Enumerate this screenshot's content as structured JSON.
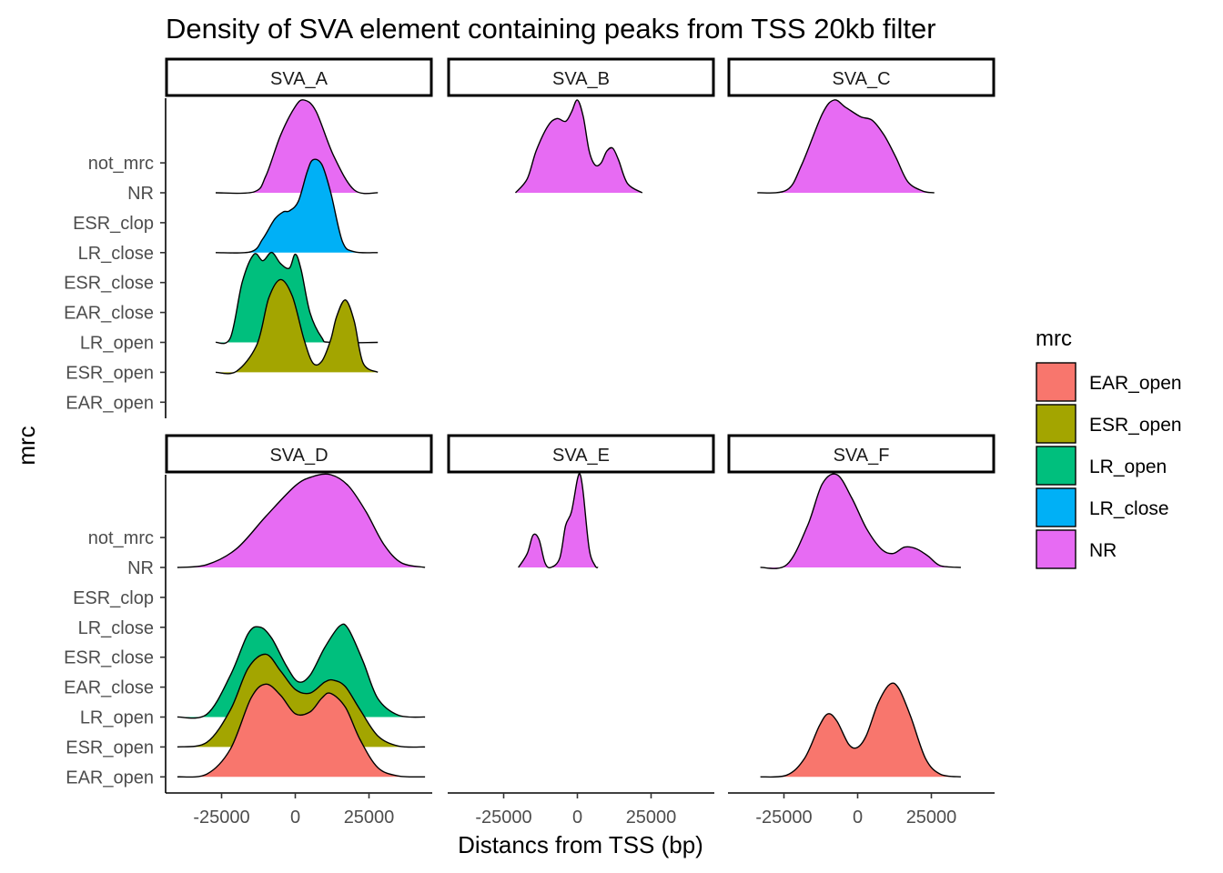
{
  "chart_data": {
    "type": "area",
    "subtype": "ridgeline-density",
    "title": "Density of SVA element containing peaks from TSS 20kb filter",
    "xlabel": "Distancs from TSS (bp)",
    "ylabel": "mrc",
    "x_ticks": [
      "-25000",
      "0",
      "25000"
    ],
    "x_tick_values": [
      -25000,
      0,
      25000
    ],
    "y_categories": [
      "EAR_open",
      "ESR_open",
      "LR_open",
      "EAR_close",
      "ESR_close",
      "LR_close",
      "ESR_clop",
      "NR",
      "not_mrc"
    ],
    "legend": {
      "title": "mrc",
      "position": "right",
      "entries": [
        {
          "label": "EAR_open",
          "color": "#F8766D"
        },
        {
          "label": "ESR_open",
          "color": "#A3A500"
        },
        {
          "label": "LR_open",
          "color": "#00BF7D"
        },
        {
          "label": "LR_close",
          "color": "#00B0F6"
        },
        {
          "label": "NR",
          "color": "#E76BF3"
        }
      ]
    },
    "facets": [
      {
        "name": "SVA_A",
        "ridges": [
          {
            "category": "NR",
            "color": "#E76BF3",
            "x": [
              -27000,
              -14000,
              -10000,
              -5000,
              0,
              3000,
              7000,
              13000,
              20000,
              28000
            ],
            "density": [
              0,
              0.01,
              0.18,
              0.62,
              0.93,
              1.0,
              0.88,
              0.4,
              0.03,
              0
            ]
          },
          {
            "category": "LR_close",
            "color": "#00B0F6",
            "x": [
              -27000,
              -15000,
              -11000,
              -7000,
              -4000,
              -2000,
              1000,
              4000,
              6000,
              9000,
              12000,
              16000,
              20000,
              28000
            ],
            "density": [
              0,
              0.01,
              0.15,
              0.36,
              0.44,
              0.45,
              0.55,
              0.87,
              1.0,
              0.95,
              0.65,
              0.12,
              0.01,
              0
            ]
          },
          {
            "category": "LR_open",
            "color": "#00BF7D",
            "x": [
              -27000,
              -22000,
              -18000,
              -14000,
              -11000,
              -8000,
              -5000,
              -2000,
              0,
              2000,
              5000,
              9000,
              12000,
              28000
            ],
            "density": [
              0,
              0.05,
              0.65,
              0.95,
              0.88,
              0.97,
              0.85,
              0.8,
              0.95,
              0.78,
              0.32,
              0.05,
              0,
              0
            ]
          },
          {
            "category": "ESR_open",
            "color": "#A3A500",
            "x": [
              -27000,
              -20000,
              -13000,
              -9000,
              -5000,
              -1000,
              3000,
              6000,
              9000,
              12000,
              14000,
              17000,
              20000,
              23000,
              28000
            ],
            "density": [
              0,
              0.01,
              0.3,
              0.8,
              1.0,
              0.82,
              0.35,
              0.1,
              0.12,
              0.35,
              0.6,
              0.78,
              0.55,
              0.1,
              0
            ]
          }
        ]
      },
      {
        "name": "SVA_B",
        "ridges": [
          {
            "category": "NR",
            "color": "#E76BF3",
            "x": [
              -21000,
              -17000,
              -14000,
              -10000,
              -7000,
              -4000,
              -2000,
              0,
              2000,
              4000,
              6000,
              8000,
              10000,
              12000,
              14000,
              17000,
              22000
            ],
            "density": [
              0,
              0.15,
              0.45,
              0.72,
              0.8,
              0.77,
              0.87,
              1.0,
              0.82,
              0.45,
              0.3,
              0.32,
              0.45,
              0.48,
              0.35,
              0.1,
              0
            ]
          }
        ]
      },
      {
        "name": "SVA_C",
        "ridges": [
          {
            "category": "NR",
            "color": "#E76BF3",
            "x": [
              -34000,
              -24000,
              -19000,
              -12000,
              -8000,
              -4000,
              1000,
              5000,
              9000,
              13000,
              17000,
              22000,
              26000
            ],
            "density": [
              0,
              0.03,
              0.3,
              0.85,
              1.0,
              0.92,
              0.82,
              0.78,
              0.62,
              0.38,
              0.12,
              0.02,
              0
            ]
          }
        ]
      },
      {
        "name": "SVA_D",
        "ridges": [
          {
            "category": "NR",
            "color": "#E76BF3",
            "x": [
              -40000,
              -30000,
              -20000,
              -10000,
              0,
              6000,
              12000,
              18000,
              24000,
              30000,
              36000,
              44000
            ],
            "density": [
              0,
              0.03,
              0.2,
              0.55,
              0.88,
              0.98,
              1.0,
              0.88,
              0.6,
              0.25,
              0.05,
              0
            ]
          },
          {
            "category": "LR_open",
            "color": "#00BF7D",
            "x": [
              -40000,
              -30000,
              -22000,
              -16000,
              -12000,
              -8000,
              -3000,
              1000,
              5000,
              10000,
              15000,
              18000,
              23000,
              28000,
              35000,
              44000
            ],
            "density": [
              0,
              0.03,
              0.45,
              0.9,
              0.97,
              0.85,
              0.55,
              0.38,
              0.45,
              0.75,
              0.98,
              0.95,
              0.6,
              0.2,
              0.02,
              0
            ]
          },
          {
            "category": "ESR_open",
            "color": "#A3A500",
            "x": [
              -40000,
              -30000,
              -22000,
              -16000,
              -10000,
              -5000,
              0,
              5000,
              10000,
              13000,
              17000,
              22000,
              28000,
              35000,
              44000
            ],
            "density": [
              0,
              0.05,
              0.4,
              0.85,
              1.0,
              0.82,
              0.62,
              0.58,
              0.7,
              0.72,
              0.65,
              0.4,
              0.12,
              0.01,
              0
            ]
          },
          {
            "category": "EAR_open",
            "color": "#F8766D",
            "x": [
              -40000,
              -30000,
              -22000,
              -15000,
              -10000,
              -5000,
              0,
              5000,
              9000,
              12000,
              17000,
              22000,
              28000,
              35000,
              44000
            ],
            "density": [
              0,
              0.03,
              0.3,
              0.85,
              1.0,
              0.88,
              0.68,
              0.7,
              0.85,
              0.9,
              0.75,
              0.4,
              0.1,
              0.01,
              0
            ]
          }
        ]
      },
      {
        "name": "SVA_E",
        "ridges": [
          {
            "category": "NR",
            "color": "#E76BF3",
            "x": [
              -20000,
              -17000,
              -15000,
              -13000,
              -11000,
              -9000,
              -6000,
              -4000,
              -2000,
              0,
              1000,
              2000,
              4000,
              6000,
              7000
            ],
            "density": [
              0,
              0.15,
              0.35,
              0.3,
              0.05,
              0,
              0.1,
              0.45,
              0.6,
              0.95,
              1.0,
              0.8,
              0.2,
              0.02,
              0
            ]
          }
        ]
      },
      {
        "name": "SVA_F",
        "ridges": [
          {
            "category": "NR",
            "color": "#E76BF3",
            "x": [
              -33000,
              -24000,
              -17000,
              -12000,
              -7000,
              -2000,
              3000,
              8000,
              12000,
              16000,
              20000,
              24000,
              28000,
              35000
            ],
            "density": [
              0,
              0.03,
              0.45,
              0.9,
              1.0,
              0.75,
              0.42,
              0.2,
              0.15,
              0.22,
              0.2,
              0.12,
              0.02,
              0
            ]
          },
          {
            "category": "EAR_open",
            "color": "#F8766D",
            "x": [
              -33000,
              -24000,
              -18000,
              -13000,
              -10000,
              -7000,
              -3000,
              0,
              3000,
              7000,
              11000,
              14000,
              18000,
              23000,
              28000,
              35000
            ],
            "density": [
              0,
              0.02,
              0.2,
              0.55,
              0.68,
              0.6,
              0.35,
              0.32,
              0.45,
              0.8,
              1.0,
              0.95,
              0.65,
              0.2,
              0.03,
              0
            ]
          }
        ]
      }
    ]
  }
}
